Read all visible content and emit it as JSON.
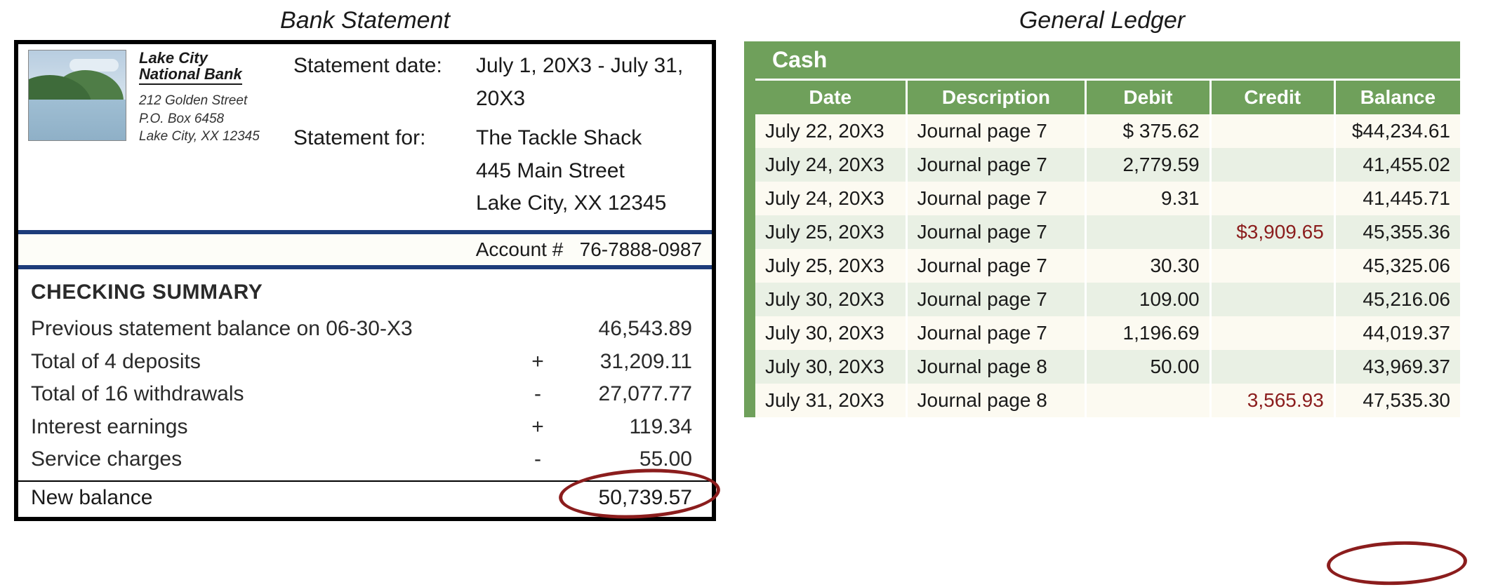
{
  "colors": {
    "ledger_green": "#6fa05b",
    "credit_red": "#8b1d1d",
    "statement_rule_blue": "#1d3c7a",
    "row_alt_light": "#fcfaf1",
    "row_alt_green": "#e9f0e4",
    "circle_stroke": "#8b1d1d"
  },
  "statement": {
    "title": "Bank Statement",
    "bank_name_line1": "Lake City",
    "bank_name_line2": "National Bank",
    "bank_addr1": "212 Golden Street",
    "bank_addr2": "P.O. Box 6458",
    "bank_addr3": "Lake City, XX 12345",
    "date_label": "Statement date:",
    "date_value": "July 1, 20X3 - July 31, 20X3",
    "for_label": "Statement for:",
    "for_line1": "The Tackle Shack",
    "for_line2": "445 Main Street",
    "for_line3": "Lake City, XX 12345",
    "account_label": "Account #",
    "account_number": "76-7888-0987",
    "summary_heading": "CHECKING SUMMARY",
    "lines": [
      {
        "label": "Previous statement balance on 06-30-X3",
        "op": "",
        "amount": "46,543.89"
      },
      {
        "label": "Total of 4 deposits",
        "op": "+",
        "amount": "31,209.11"
      },
      {
        "label": "Total of 16 withdrawals",
        "op": "-",
        "amount": "27,077.77"
      },
      {
        "label": "Interest earnings",
        "op": "+",
        "amount": "119.34"
      },
      {
        "label": "Service charges",
        "op": "-",
        "amount": "55.00"
      }
    ],
    "new_balance_label": "New balance",
    "new_balance_amount": "50,739.57"
  },
  "ledger": {
    "title": "General Ledger",
    "account_name": "Cash",
    "columns": [
      "Date",
      "Description",
      "Debit",
      "Credit",
      "Balance"
    ],
    "rows": [
      {
        "date": "July 22, 20X3",
        "desc": "Journal page 7",
        "debit": "$   375.62",
        "credit": "",
        "balance": "$44,234.61"
      },
      {
        "date": "July 24, 20X3",
        "desc": "Journal page 7",
        "debit": "2,779.59",
        "credit": "",
        "balance": "41,455.02"
      },
      {
        "date": "July 24, 20X3",
        "desc": "Journal page 7",
        "debit": "9.31",
        "credit": "",
        "balance": "41,445.71"
      },
      {
        "date": "July 25, 20X3",
        "desc": "Journal page 7",
        "debit": "",
        "credit": "$3,909.65",
        "balance": "45,355.36"
      },
      {
        "date": "July 25, 20X3",
        "desc": "Journal page 7",
        "debit": "30.30",
        "credit": "",
        "balance": "45,325.06"
      },
      {
        "date": "July 30, 20X3",
        "desc": "Journal page 7",
        "debit": "109.00",
        "credit": "",
        "balance": "45,216.06"
      },
      {
        "date": "July 30, 20X3",
        "desc": "Journal page 7",
        "debit": "1,196.69",
        "credit": "",
        "balance": "44,019.37"
      },
      {
        "date": "July 30, 20X3",
        "desc": "Journal page 8",
        "debit": "50.00",
        "credit": "",
        "balance": "43,969.37"
      },
      {
        "date": "July 31, 20X3",
        "desc": "Journal page 8",
        "debit": "",
        "credit": "3,565.93",
        "balance": "47,535.30"
      }
    ]
  }
}
